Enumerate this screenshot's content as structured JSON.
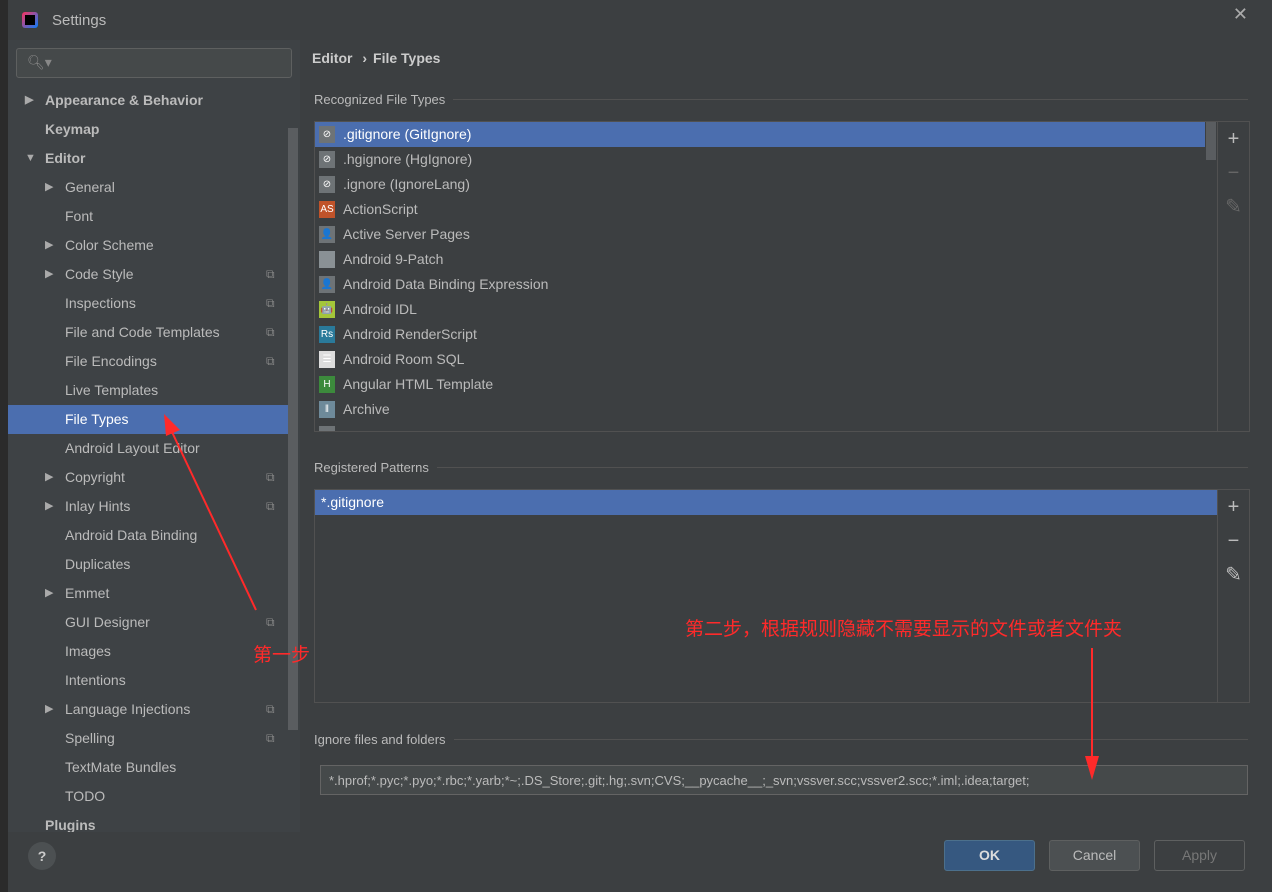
{
  "window": {
    "title": "Settings",
    "close": "✕"
  },
  "search": {
    "placeholder": "",
    "icon": "🔍︎▾"
  },
  "sidebar": {
    "items": [
      {
        "label": "Appearance & Behavior",
        "level": 0,
        "arrow": "▶",
        "bold": true
      },
      {
        "label": "Keymap",
        "level": 0,
        "arrow": "",
        "bold": true
      },
      {
        "label": "Editor",
        "level": 0,
        "arrow": "▼",
        "bold": true
      },
      {
        "label": "General",
        "level": 1,
        "arrow": "▶"
      },
      {
        "label": "Font",
        "level": 1,
        "arrow": ""
      },
      {
        "label": "Color Scheme",
        "level": 1,
        "arrow": "▶"
      },
      {
        "label": "Code Style",
        "level": 1,
        "arrow": "▶",
        "copy": true
      },
      {
        "label": "Inspections",
        "level": 1,
        "arrow": "",
        "copy": true
      },
      {
        "label": "File and Code Templates",
        "level": 1,
        "arrow": "",
        "copy": true
      },
      {
        "label": "File Encodings",
        "level": 1,
        "arrow": "",
        "copy": true
      },
      {
        "label": "Live Templates",
        "level": 1,
        "arrow": ""
      },
      {
        "label": "File Types",
        "level": 1,
        "arrow": "",
        "selected": true
      },
      {
        "label": "Android Layout Editor",
        "level": 1,
        "arrow": ""
      },
      {
        "label": "Copyright",
        "level": 1,
        "arrow": "▶",
        "copy": true
      },
      {
        "label": "Inlay Hints",
        "level": 1,
        "arrow": "▶",
        "copy": true
      },
      {
        "label": "Android Data Binding",
        "level": 1,
        "arrow": ""
      },
      {
        "label": "Duplicates",
        "level": 1,
        "arrow": ""
      },
      {
        "label": "Emmet",
        "level": 1,
        "arrow": "▶"
      },
      {
        "label": "GUI Designer",
        "level": 1,
        "arrow": "",
        "copy": true
      },
      {
        "label": "Images",
        "level": 1,
        "arrow": ""
      },
      {
        "label": "Intentions",
        "level": 1,
        "arrow": ""
      },
      {
        "label": "Language Injections",
        "level": 1,
        "arrow": "▶",
        "copy": true
      },
      {
        "label": "Spelling",
        "level": 1,
        "arrow": "",
        "copy": true
      },
      {
        "label": "TextMate Bundles",
        "level": 1,
        "arrow": ""
      },
      {
        "label": "TODO",
        "level": 1,
        "arrow": ""
      },
      {
        "label": "Plugins",
        "level": 0,
        "arrow": "",
        "bold": true
      }
    ]
  },
  "breadcrumb": {
    "parent": "Editor",
    "sep": "›",
    "current": "File Types"
  },
  "recognized": {
    "title": "Recognized File Types",
    "items": [
      {
        "label": ".gitignore (GitIgnore)",
        "icon": "ignore-file",
        "selected": true
      },
      {
        "label": ".hgignore (HgIgnore)",
        "icon": "ignore-file"
      },
      {
        "label": ".ignore (IgnoreLang)",
        "icon": "ignore-file"
      },
      {
        "label": "ActionScript",
        "icon": "actionscript"
      },
      {
        "label": "Active Server Pages",
        "icon": "asp-file"
      },
      {
        "label": "Android 9-Patch",
        "icon": "folder"
      },
      {
        "label": "Android Data Binding Expression",
        "icon": "asp-file"
      },
      {
        "label": "Android IDL",
        "icon": "android"
      },
      {
        "label": "Android RenderScript",
        "icon": "renderscript"
      },
      {
        "label": "Android Room SQL",
        "icon": "database"
      },
      {
        "label": "Angular HTML Template",
        "icon": "html-file"
      },
      {
        "label": "Archive",
        "icon": "archive"
      },
      {
        "label": "",
        "icon": "file"
      }
    ]
  },
  "patterns": {
    "title": "Registered Patterns",
    "items": [
      "*.gitignore"
    ]
  },
  "tools": {
    "add": "+",
    "remove": "−",
    "edit": "✎"
  },
  "ignore": {
    "title": "Ignore files and folders",
    "value": "*.hprof;*.pyc;*.pyo;*.rbc;*.yarb;*~;.DS_Store;.git;.hg;.svn;CVS;__pycache__;_svn;vssver.scc;vssver2.scc;*.iml;.idea;target;"
  },
  "footer": {
    "help": "?",
    "ok": "OK",
    "cancel": "Cancel",
    "apply": "Apply"
  },
  "annotations": {
    "step1": "第一步",
    "step2": "第二步，根据规则隐藏不需要显示的文件或者文件夹",
    "color": "#ff2a2a"
  },
  "colors": {
    "selection": "#4b6eaf",
    "background": "#3c3f41"
  }
}
